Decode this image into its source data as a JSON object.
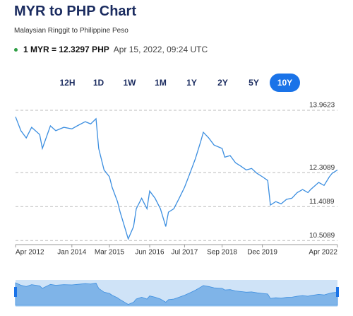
{
  "header": {
    "title": "MYR to PHP Chart",
    "subtitle": "Malaysian Ringgit to Philippine Peso",
    "rate": "1 MYR = 12.3297 PHP",
    "timestamp": "Apr 15, 2022, 09:24 UTC"
  },
  "range_buttons": {
    "items": [
      "12H",
      "1D",
      "1W",
      "1M",
      "1Y",
      "2Y",
      "5Y",
      "10Y"
    ],
    "active": 7
  },
  "chart_data": {
    "type": "line",
    "x": [
      "2012-04",
      "2012-06",
      "2012-08",
      "2012-10",
      "2013-01",
      "2013-02",
      "2013-05",
      "2013-07",
      "2013-10",
      "2014-01",
      "2014-03",
      "2014-06",
      "2014-08",
      "2014-10",
      "2014-11",
      "2015-01",
      "2015-03",
      "2015-04",
      "2015-06",
      "2015-07",
      "2015-09",
      "2015-10",
      "2015-12",
      "2016-01",
      "2016-03",
      "2016-05",
      "2016-06",
      "2016-08",
      "2016-10",
      "2016-12",
      "2017-01",
      "2017-03",
      "2017-05",
      "2017-07",
      "2017-09",
      "2017-11",
      "2018-01",
      "2018-02",
      "2018-04",
      "2018-06",
      "2018-09",
      "2018-10",
      "2018-12",
      "2019-02",
      "2019-04",
      "2019-06",
      "2019-08",
      "2019-10",
      "2019-12",
      "2020-02",
      "2020-03",
      "2020-05",
      "2020-07",
      "2020-09",
      "2020-11",
      "2021-01",
      "2021-03",
      "2021-05",
      "2021-06",
      "2021-09",
      "2021-11",
      "2022-01",
      "2022-02",
      "2022-04"
    ],
    "series": [
      {
        "name": "MYR/PHP",
        "color": "#3b8ee0",
        "values": [
          13.79,
          13.42,
          13.23,
          13.51,
          13.32,
          12.95,
          13.55,
          13.42,
          13.51,
          13.47,
          13.55,
          13.66,
          13.6,
          13.74,
          12.95,
          12.38,
          12.2,
          11.92,
          11.54,
          11.26,
          10.79,
          10.55,
          10.88,
          11.35,
          11.63,
          11.35,
          11.82,
          11.63,
          11.35,
          10.88,
          11.26,
          11.35,
          11.63,
          11.92,
          12.29,
          12.67,
          13.13,
          13.38,
          13.23,
          13.04,
          12.95,
          12.72,
          12.76,
          12.57,
          12.48,
          12.38,
          12.42,
          12.29,
          12.2,
          12.1,
          11.45,
          11.54,
          11.48,
          11.6,
          11.63,
          11.78,
          11.86,
          11.78,
          11.86,
          12.05,
          11.97,
          12.2,
          12.29,
          12.38
        ]
      }
    ],
    "xlim": [
      "2012-04",
      "2022-04"
    ],
    "xticks": [
      {
        "value": "2012-04",
        "label": "Apr 2012"
      },
      {
        "value": "2014-01",
        "label": "Jan 2014"
      },
      {
        "value": "2015-03",
        "label": "Mar 2015"
      },
      {
        "value": "2016-06",
        "label": "Jun 2016"
      },
      {
        "value": "2017-07",
        "label": "Jul 2017"
      },
      {
        "value": "2018-09",
        "label": "Sep 2018"
      },
      {
        "value": "2019-12",
        "label": "Dec 2019"
      },
      {
        "value": "2022-04",
        "label": "Apr 2022"
      }
    ],
    "ylim": [
      10.4,
      14.0
    ],
    "yticks": [
      13.9623,
      12.3089,
      11.4089,
      10.5089
    ],
    "grid": true
  }
}
